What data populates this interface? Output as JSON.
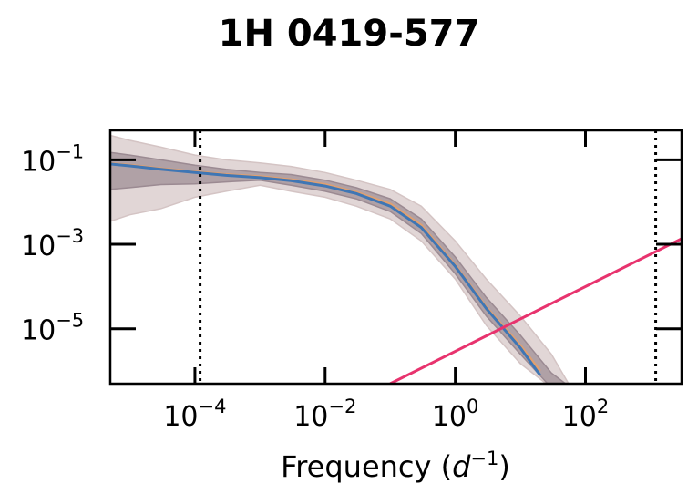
{
  "chart_data": {
    "type": "line",
    "title": "1H 0419-577",
    "xlabel": "Frequency",
    "xlabel_unit": "d",
    "xlabel_unit_exp": "−1",
    "x_scale": "log",
    "y_scale": "log",
    "xlim": [
      5e-06,
      3000
    ],
    "ylim": [
      5e-07,
      0.5
    ],
    "x_ticks": [
      {
        "value": 0.0001,
        "base": "10",
        "exp": "−4"
      },
      {
        "value": 0.01,
        "base": "10",
        "exp": "−2"
      },
      {
        "value": 1,
        "base": "10",
        "exp": "0"
      },
      {
        "value": 100,
        "base": "10",
        "exp": "2"
      }
    ],
    "y_ticks": [
      {
        "value": 0.1,
        "base": "10",
        "exp": "−1"
      },
      {
        "value": 0.001,
        "base": "10",
        "exp": "−3"
      },
      {
        "value": 1e-05,
        "base": "10",
        "exp": "−5"
      }
    ],
    "vlines": [
      0.00012,
      1200
    ],
    "bands": [
      {
        "color": "#d4c4c4",
        "opacity": 0.7,
        "x": [
          5e-06,
          1e-05,
          3e-05,
          0.0001,
          0.0003,
          0.001,
          0.003,
          0.01,
          0.03,
          0.1,
          0.3,
          1,
          3,
          10,
          30,
          60
        ],
        "upper": [
          0.38,
          0.29,
          0.2,
          0.13,
          0.1,
          0.085,
          0.07,
          0.05,
          0.033,
          0.02,
          0.008,
          0.0012,
          0.00015,
          2e-05,
          2.5e-06,
          4e-07
        ],
        "lower": [
          0.0035,
          0.005,
          0.007,
          0.013,
          0.018,
          0.025,
          0.018,
          0.013,
          0.008,
          0.004,
          0.0012,
          0.00015,
          1.2e-05,
          1.5e-06,
          4e-07,
          4e-07
        ]
      },
      {
        "color": "#9b8a92",
        "opacity": 0.7,
        "x": [
          5e-06,
          1e-05,
          3e-05,
          0.0001,
          0.0003,
          0.001,
          0.003,
          0.01,
          0.03,
          0.1,
          0.3,
          1,
          3,
          10,
          30,
          60
        ],
        "upper": [
          0.15,
          0.13,
          0.1,
          0.075,
          0.06,
          0.05,
          0.045,
          0.033,
          0.022,
          0.012,
          0.004,
          0.0005,
          5.5e-05,
          7e-06,
          9e-07,
          4e-07
        ],
        "lower": [
          0.02,
          0.022,
          0.026,
          0.027,
          0.03,
          0.033,
          0.025,
          0.018,
          0.012,
          0.006,
          0.0018,
          0.0002,
          2e-05,
          2.5e-06,
          4e-07,
          4e-07
        ]
      }
    ],
    "series": [
      {
        "color": "#e0a070",
        "x": [
          5e-06,
          1e-05,
          3e-05,
          0.0001,
          0.0003,
          0.001,
          0.003,
          0.01,
          0.03,
          0.1,
          0.3,
          1,
          3,
          10,
          20
        ],
        "y": [
          0.082,
          0.075,
          0.062,
          0.052,
          0.045,
          0.04,
          0.034,
          0.026,
          0.017,
          0.009,
          0.0028,
          0.00032,
          3.2e-05,
          4e-06,
          1e-06
        ]
      },
      {
        "color": "#3f76b4",
        "x": [
          5e-06,
          1e-05,
          3e-05,
          0.0001,
          0.0003,
          0.001,
          0.003,
          0.01,
          0.03,
          0.1,
          0.3,
          1,
          3,
          10,
          20
        ],
        "y": [
          0.08,
          0.072,
          0.06,
          0.05,
          0.043,
          0.038,
          0.032,
          0.024,
          0.016,
          0.008,
          0.0025,
          0.0003,
          3e-05,
          3.5e-06,
          8e-07
        ]
      },
      {
        "color": "#e8336e",
        "x": [
          0.1,
          3000
        ],
        "y": [
          5e-07,
          0.00135
        ]
      }
    ]
  }
}
